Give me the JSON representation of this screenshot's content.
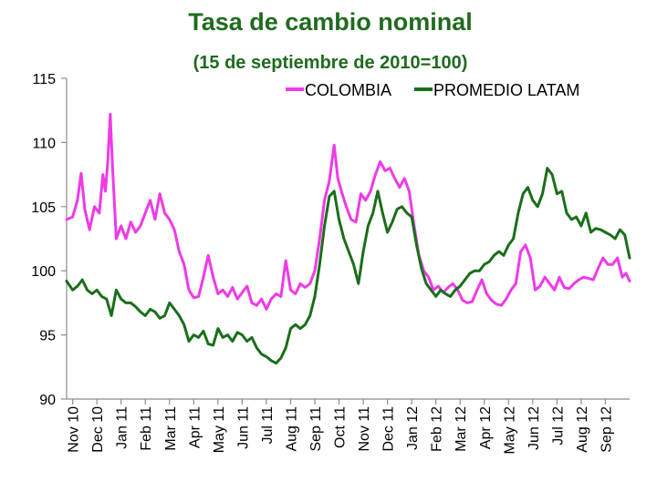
{
  "chart_data": {
    "type": "line",
    "title": "Tasa de cambio nominal",
    "subtitle": "(15 de septiembre de 2010=100)",
    "xlabel": "",
    "ylabel": "",
    "ylim": [
      90,
      115
    ],
    "yticks": [
      90,
      95,
      100,
      105,
      110,
      115
    ],
    "grid": false,
    "legend_position": "top-right",
    "categories": [
      "Nov 10",
      "Dec 10",
      "Jan 11",
      "Feb 11",
      "Mar 11",
      "Apr 11",
      "May 11",
      "Jun 11",
      "Jul 11",
      "Aug 11",
      "Sep 11",
      "Oct 11",
      "Nov 11",
      "Dec 11",
      "Jan 12",
      "Feb 12",
      "Mar 12",
      "Apr 12",
      "May 12",
      "Jun 12",
      "Jul 12",
      "Aug 12",
      "Sep 12"
    ],
    "x_range": [
      -0.25,
      23.0
    ],
    "series": [
      {
        "name": "COLOMBIA",
        "color": "#ee3ae8",
        "points": [
          [
            -0.25,
            104.0
          ],
          [
            0.0,
            104.2
          ],
          [
            0.2,
            105.5
          ],
          [
            0.35,
            107.6
          ],
          [
            0.5,
            104.8
          ],
          [
            0.7,
            103.2
          ],
          [
            0.9,
            105.0
          ],
          [
            1.1,
            104.5
          ],
          [
            1.25,
            107.5
          ],
          [
            1.35,
            106.2
          ],
          [
            1.45,
            108.5
          ],
          [
            1.55,
            112.2
          ],
          [
            1.65,
            108.0
          ],
          [
            1.8,
            102.5
          ],
          [
            2.0,
            103.5
          ],
          [
            2.2,
            102.5
          ],
          [
            2.4,
            103.8
          ],
          [
            2.6,
            103.0
          ],
          [
            2.8,
            103.5
          ],
          [
            3.0,
            104.5
          ],
          [
            3.2,
            105.5
          ],
          [
            3.4,
            104.0
          ],
          [
            3.6,
            106.0
          ],
          [
            3.8,
            104.5
          ],
          [
            4.0,
            104.0
          ],
          [
            4.2,
            103.2
          ],
          [
            4.4,
            101.5
          ],
          [
            4.6,
            100.5
          ],
          [
            4.8,
            98.5
          ],
          [
            5.0,
            97.9
          ],
          [
            5.2,
            98.0
          ],
          [
            5.4,
            99.5
          ],
          [
            5.6,
            101.2
          ],
          [
            5.8,
            99.5
          ],
          [
            6.0,
            98.2
          ],
          [
            6.2,
            98.5
          ],
          [
            6.4,
            98.0
          ],
          [
            6.6,
            98.7
          ],
          [
            6.8,
            97.8
          ],
          [
            7.0,
            98.3
          ],
          [
            7.2,
            98.8
          ],
          [
            7.4,
            97.5
          ],
          [
            7.6,
            97.3
          ],
          [
            7.8,
            97.8
          ],
          [
            8.0,
            97.0
          ],
          [
            8.2,
            97.8
          ],
          [
            8.4,
            98.2
          ],
          [
            8.6,
            98.0
          ],
          [
            8.8,
            100.8
          ],
          [
            9.0,
            98.5
          ],
          [
            9.2,
            98.2
          ],
          [
            9.4,
            99.0
          ],
          [
            9.6,
            98.7
          ],
          [
            9.8,
            99.0
          ],
          [
            10.0,
            100.0
          ],
          [
            10.2,
            102.5
          ],
          [
            10.4,
            105.5
          ],
          [
            10.6,
            107.0
          ],
          [
            10.8,
            109.8
          ],
          [
            10.95,
            107.2
          ],
          [
            11.1,
            106.2
          ],
          [
            11.3,
            105.0
          ],
          [
            11.5,
            104.0
          ],
          [
            11.7,
            103.8
          ],
          [
            11.9,
            106.0
          ],
          [
            12.1,
            105.5
          ],
          [
            12.3,
            106.2
          ],
          [
            12.5,
            107.5
          ],
          [
            12.7,
            108.5
          ],
          [
            12.9,
            107.8
          ],
          [
            13.1,
            108.0
          ],
          [
            13.3,
            107.2
          ],
          [
            13.5,
            106.5
          ],
          [
            13.7,
            107.2
          ],
          [
            13.9,
            106.2
          ],
          [
            14.1,
            103.5
          ],
          [
            14.3,
            101.2
          ],
          [
            14.5,
            100.0
          ],
          [
            14.7,
            99.5
          ],
          [
            14.9,
            98.5
          ],
          [
            15.1,
            98.8
          ],
          [
            15.3,
            98.3
          ],
          [
            15.5,
            98.7
          ],
          [
            15.7,
            99.0
          ],
          [
            15.9,
            98.5
          ],
          [
            16.1,
            97.7
          ],
          [
            16.3,
            97.5
          ],
          [
            16.5,
            97.6
          ],
          [
            16.7,
            98.5
          ],
          [
            16.9,
            99.3
          ],
          [
            17.1,
            98.2
          ],
          [
            17.3,
            97.7
          ],
          [
            17.5,
            97.4
          ],
          [
            17.7,
            97.3
          ],
          [
            17.9,
            97.8
          ],
          [
            18.1,
            98.5
          ],
          [
            18.3,
            99.0
          ],
          [
            18.5,
            101.5
          ],
          [
            18.7,
            102.0
          ],
          [
            18.9,
            101.0
          ],
          [
            19.1,
            98.5
          ],
          [
            19.3,
            98.8
          ],
          [
            19.5,
            99.5
          ],
          [
            19.7,
            99.0
          ],
          [
            19.9,
            98.5
          ],
          [
            20.1,
            99.5
          ],
          [
            20.3,
            98.7
          ],
          [
            20.5,
            98.6
          ],
          [
            20.7,
            99.0
          ],
          [
            20.9,
            99.3
          ],
          [
            21.1,
            99.5
          ],
          [
            21.3,
            99.4
          ],
          [
            21.5,
            99.3
          ],
          [
            21.7,
            100.2
          ],
          [
            21.9,
            101.0
          ],
          [
            22.1,
            100.5
          ],
          [
            22.3,
            100.5
          ],
          [
            22.5,
            101.0
          ],
          [
            22.7,
            99.5
          ],
          [
            22.85,
            99.8
          ],
          [
            23.0,
            99.2
          ]
        ]
      },
      {
        "name": "PROMEDIO LATAM",
        "color": "#1a6e1a",
        "points": [
          [
            -0.25,
            99.2
          ],
          [
            0.0,
            98.5
          ],
          [
            0.2,
            98.8
          ],
          [
            0.4,
            99.3
          ],
          [
            0.6,
            98.5
          ],
          [
            0.8,
            98.2
          ],
          [
            1.0,
            98.5
          ],
          [
            1.2,
            98.0
          ],
          [
            1.4,
            97.8
          ],
          [
            1.6,
            96.5
          ],
          [
            1.8,
            98.5
          ],
          [
            2.0,
            97.8
          ],
          [
            2.2,
            97.5
          ],
          [
            2.4,
            97.5
          ],
          [
            2.6,
            97.2
          ],
          [
            2.8,
            96.8
          ],
          [
            3.0,
            96.5
          ],
          [
            3.2,
            97.0
          ],
          [
            3.4,
            96.8
          ],
          [
            3.6,
            96.3
          ],
          [
            3.8,
            96.5
          ],
          [
            4.0,
            97.5
          ],
          [
            4.2,
            97.0
          ],
          [
            4.4,
            96.5
          ],
          [
            4.6,
            95.8
          ],
          [
            4.8,
            94.5
          ],
          [
            5.0,
            95.0
          ],
          [
            5.2,
            94.8
          ],
          [
            5.4,
            95.3
          ],
          [
            5.6,
            94.3
          ],
          [
            5.8,
            94.2
          ],
          [
            6.0,
            95.5
          ],
          [
            6.2,
            94.8
          ],
          [
            6.4,
            95.0
          ],
          [
            6.6,
            94.5
          ],
          [
            6.8,
            95.2
          ],
          [
            7.0,
            95.0
          ],
          [
            7.2,
            94.5
          ],
          [
            7.4,
            94.8
          ],
          [
            7.6,
            94.0
          ],
          [
            7.8,
            93.5
          ],
          [
            8.0,
            93.3
          ],
          [
            8.2,
            93.0
          ],
          [
            8.4,
            92.8
          ],
          [
            8.6,
            93.2
          ],
          [
            8.8,
            94.0
          ],
          [
            9.0,
            95.5
          ],
          [
            9.2,
            95.8
          ],
          [
            9.4,
            95.5
          ],
          [
            9.6,
            95.8
          ],
          [
            9.8,
            96.5
          ],
          [
            10.0,
            98.0
          ],
          [
            10.2,
            100.5
          ],
          [
            10.4,
            103.5
          ],
          [
            10.6,
            105.8
          ],
          [
            10.8,
            106.2
          ],
          [
            11.0,
            104.0
          ],
          [
            11.2,
            102.5
          ],
          [
            11.4,
            101.5
          ],
          [
            11.6,
            100.5
          ],
          [
            11.8,
            99.0
          ],
          [
            12.0,
            101.5
          ],
          [
            12.2,
            103.5
          ],
          [
            12.4,
            104.5
          ],
          [
            12.6,
            106.2
          ],
          [
            12.8,
            104.5
          ],
          [
            13.0,
            103.0
          ],
          [
            13.2,
            103.8
          ],
          [
            13.4,
            104.8
          ],
          [
            13.6,
            105.0
          ],
          [
            13.8,
            104.5
          ],
          [
            14.0,
            104.2
          ],
          [
            14.2,
            102.0
          ],
          [
            14.4,
            100.2
          ],
          [
            14.6,
            99.0
          ],
          [
            14.8,
            98.5
          ],
          [
            15.0,
            98.0
          ],
          [
            15.2,
            98.5
          ],
          [
            15.4,
            98.2
          ],
          [
            15.6,
            98.0
          ],
          [
            15.8,
            98.5
          ],
          [
            16.0,
            98.8
          ],
          [
            16.2,
            99.3
          ],
          [
            16.4,
            99.8
          ],
          [
            16.6,
            100.0
          ],
          [
            16.8,
            100.0
          ],
          [
            17.0,
            100.5
          ],
          [
            17.2,
            100.7
          ],
          [
            17.4,
            101.2
          ],
          [
            17.6,
            101.5
          ],
          [
            17.8,
            101.2
          ],
          [
            18.0,
            102.0
          ],
          [
            18.2,
            102.5
          ],
          [
            18.4,
            104.5
          ],
          [
            18.6,
            106.0
          ],
          [
            18.8,
            106.5
          ],
          [
            19.0,
            105.5
          ],
          [
            19.2,
            105.0
          ],
          [
            19.4,
            106.0
          ],
          [
            19.6,
            108.0
          ],
          [
            19.8,
            107.5
          ],
          [
            20.0,
            106.0
          ],
          [
            20.2,
            106.2
          ],
          [
            20.4,
            104.5
          ],
          [
            20.6,
            104.0
          ],
          [
            20.8,
            104.2
          ],
          [
            21.0,
            103.5
          ],
          [
            21.2,
            104.5
          ],
          [
            21.4,
            103.0
          ],
          [
            21.6,
            103.3
          ],
          [
            21.8,
            103.2
          ],
          [
            22.0,
            103.0
          ],
          [
            22.2,
            102.8
          ],
          [
            22.4,
            102.5
          ],
          [
            22.6,
            103.2
          ],
          [
            22.8,
            102.8
          ],
          [
            23.0,
            101.0
          ]
        ]
      }
    ]
  }
}
